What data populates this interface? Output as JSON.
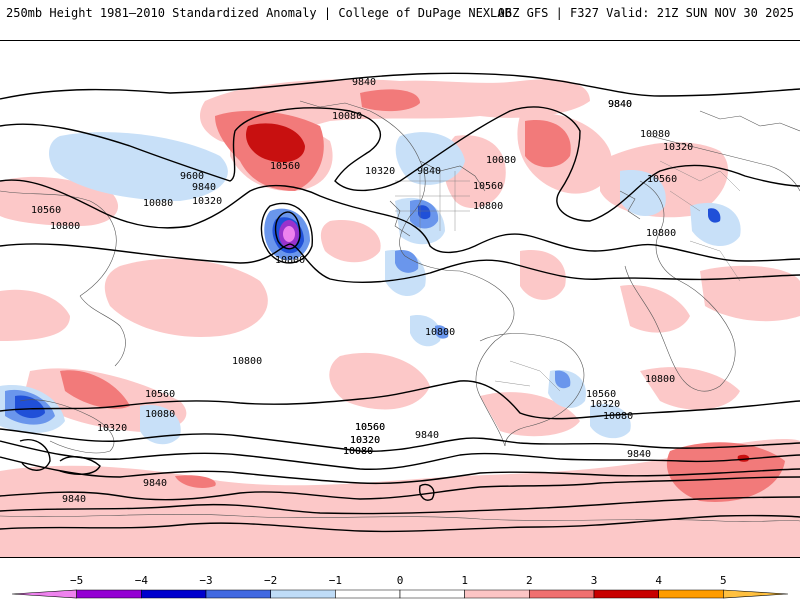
{
  "header": {
    "title_left": "250mb Height 1981–2010 Standardized Anomaly | College of DuPage NEXLAB",
    "title_right": "06Z GFS | F327 Valid: 21Z SUN NOV 30 2025"
  },
  "contour_labels": [
    "9840",
    "9840",
    "10080",
    "10560",
    "9600",
    "9840",
    "10080",
    "10320",
    "10560",
    "10800",
    "10800",
    "10320",
    "9840",
    "10560",
    "10800",
    "10080",
    "9840",
    "10080",
    "10320",
    "10560",
    "10800",
    "10800",
    "10800",
    "10560",
    "10080",
    "10320",
    "10560",
    "10320",
    "10080",
    "10560",
    "10320",
    "10080",
    "9840",
    "10560",
    "10320",
    "10080",
    "9840",
    "9840",
    "9840",
    "10800"
  ],
  "colorbar": {
    "ticks": [
      "−5",
      "−4",
      "−3",
      "−2",
      "−1",
      "0",
      "1",
      "2",
      "3",
      "4",
      "5"
    ],
    "colors": [
      "#ee82ee",
      "#9400d3",
      "#0000cd",
      "#4169e1",
      "#bfdcf7",
      "#ffffff",
      "#ffffff",
      "#fcc5c5",
      "#f07070",
      "#c80000",
      "#ff9c00",
      "#ffc040"
    ]
  },
  "palette": {
    "neg1": "#c8e0f8",
    "neg2": "#6a96ec",
    "neg3": "#2050d8",
    "neg4": "#8a2be2",
    "neg5": "#ee82ee",
    "pos1": "#fcc8c8",
    "pos2": "#f27a7a",
    "pos3": "#c81010"
  }
}
